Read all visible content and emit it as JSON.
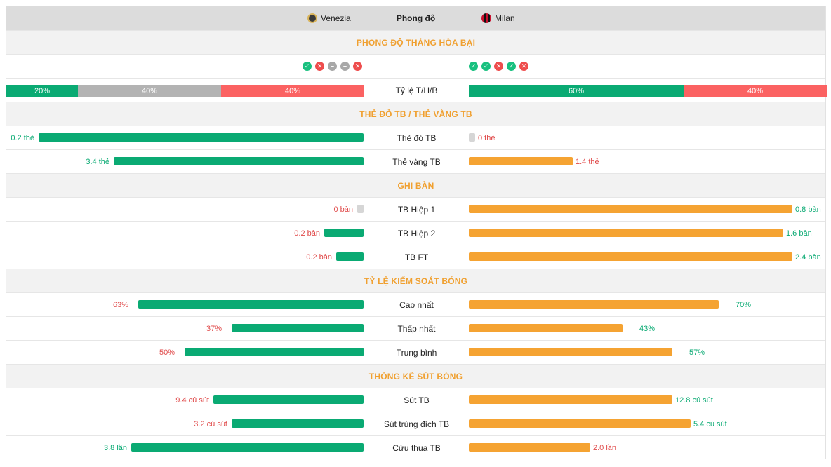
{
  "header": {
    "home_team": "Venezia",
    "away_team": "Milan",
    "title": "Phong độ"
  },
  "colors": {
    "win": "#0aaa73",
    "draw": "#b3b3b3",
    "loss": "#fb6262",
    "away_bar": "#f5a332",
    "section_title": "#f0a030"
  },
  "form": {
    "title": "PHONG ĐỘ THẮNG HÒA BẠI",
    "home_results": [
      "W",
      "L",
      "D",
      "D",
      "L"
    ],
    "away_results": [
      "W",
      "W",
      "L",
      "W",
      "L"
    ],
    "ratio_label": "Tỷ lệ T/H/B",
    "home_ratio": {
      "win": "20%",
      "draw": "40%",
      "loss": "40%",
      "win_frac": 0.2,
      "draw_frac": 0.4,
      "loss_frac": 0.4
    },
    "away_ratio": {
      "win": "60%",
      "loss": "40%",
      "win_frac": 0.6,
      "loss_frac": 0.4
    }
  },
  "cards": {
    "title": "THẺ ĐỎ TB / THẺ VÀNG TB",
    "rows": [
      {
        "label": "Thẻ đỏ TB",
        "home": "0.2 thẻ",
        "away": "0 thẻ",
        "home_frac": 0.91,
        "away_frac": 0
      },
      {
        "label": "Thẻ vàng TB",
        "home": "3.4 thẻ",
        "away": "1.4 thẻ",
        "home_frac": 0.7,
        "away_frac": 0.29
      }
    ]
  },
  "goals": {
    "title": "GHI BÀN",
    "rows": [
      {
        "label": "TB Hiệp 1",
        "home": "0 bàn",
        "away": "0.8 bàn",
        "home_frac": 0,
        "away_frac": 0.905
      },
      {
        "label": "TB Hiệp 2",
        "home": "0.2 bàn",
        "away": "1.6 bàn",
        "home_frac": 0.11,
        "away_frac": 0.88
      },
      {
        "label": "TB FT",
        "home": "0.2 bàn",
        "away": "2.4 bàn",
        "home_frac": 0.077,
        "away_frac": 0.905
      }
    ]
  },
  "possession": {
    "title": "TỶ LỆ KIỂM SOÁT BÓNG",
    "rows": [
      {
        "label": "Cao nhất",
        "home": "63%",
        "away": "70%",
        "home_frac": 0.63,
        "away_frac": 0.7
      },
      {
        "label": "Thấp nhất",
        "home": "37%",
        "away": "43%",
        "home_frac": 0.37,
        "away_frac": 0.43
      },
      {
        "label": "Trung bình",
        "home": "50%",
        "away": "57%",
        "home_frac": 0.5,
        "away_frac": 0.57
      }
    ]
  },
  "shots": {
    "title": "THỐNG KÊ SÚT BÓNG",
    "rows": [
      {
        "label": "Sút TB",
        "home": "9.4 cú sút",
        "away": "12.8 cú sút",
        "home_frac": 0.42,
        "away_frac": 0.57
      },
      {
        "label": "Sút trúng đích TB",
        "home": "3.2 cú sút",
        "away": "5.4 cú sút",
        "home_frac": 0.37,
        "away_frac": 0.62
      },
      {
        "label": "Cứu thua TB",
        "home": "3.8 lần",
        "away": "2.0 lần",
        "home_frac": 0.65,
        "away_frac": 0.34
      }
    ]
  }
}
